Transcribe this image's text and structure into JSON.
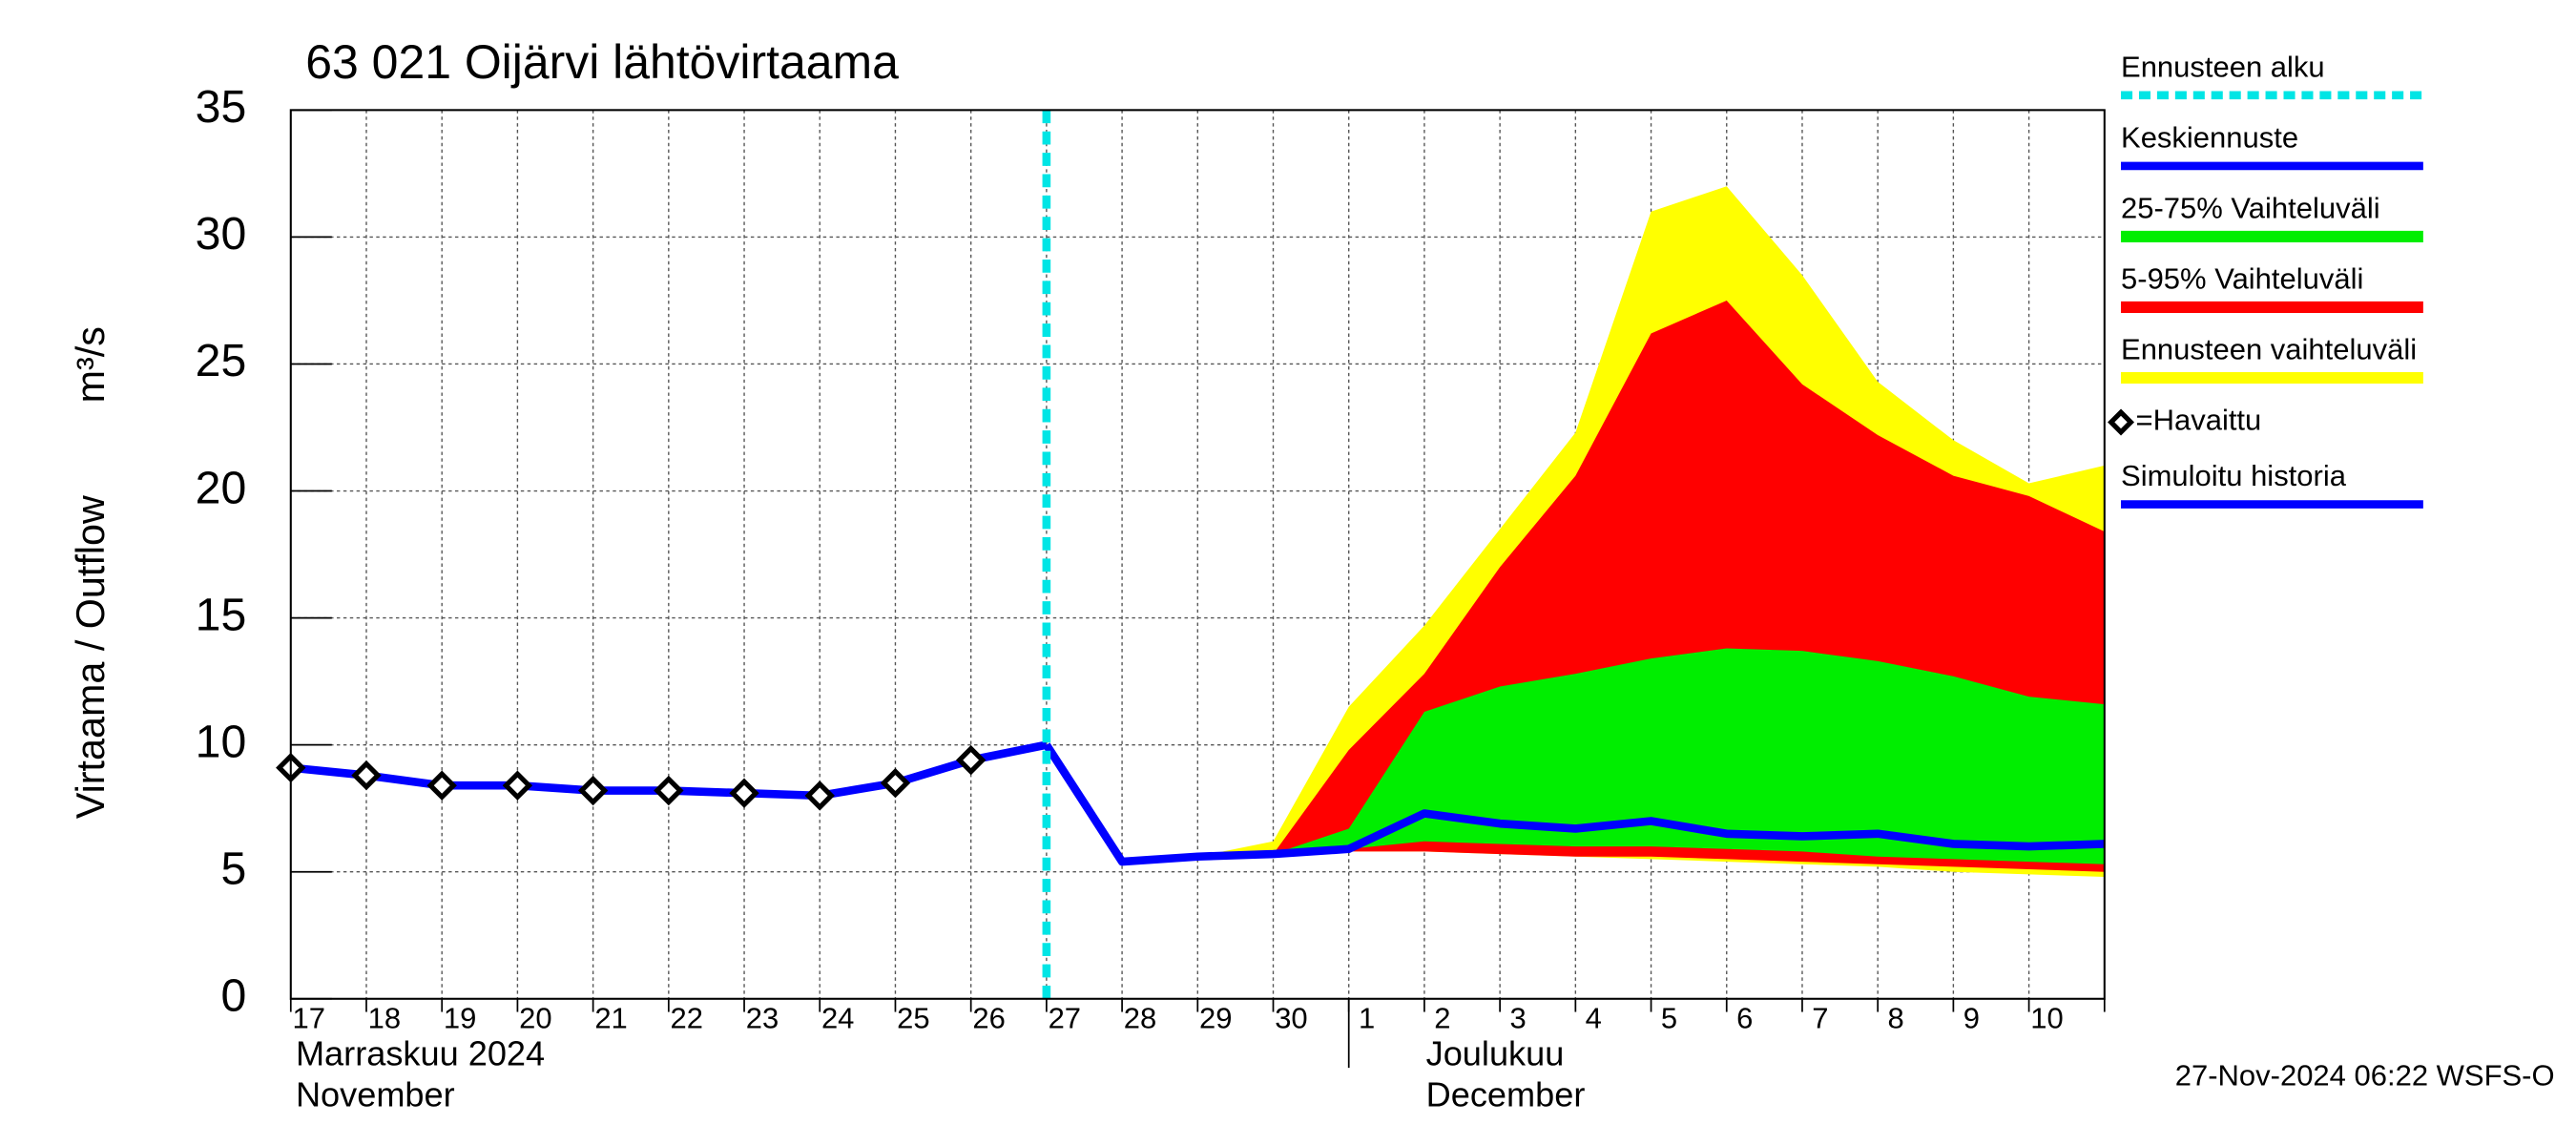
{
  "chart_data": {
    "type": "band-line",
    "title": "63 021 Oijärvi lähtövirtaama",
    "y_label": "Virtaama / Outflow",
    "y_unit": "m³/s",
    "month_labels": [
      "Marraskuu 2024",
      "November",
      "Joulukuu",
      "December"
    ],
    "footer": "27-Nov-2024 06:22 WSFS-O",
    "categories": [
      "17",
      "18",
      "19",
      "20",
      "21",
      "22",
      "23",
      "24",
      "25",
      "26",
      "27",
      "28",
      "29",
      "30",
      "1",
      "2",
      "3",
      "4",
      "5",
      "6",
      "7",
      "8",
      "9",
      "10",
      null
    ],
    "ylim": [
      0,
      35
    ],
    "yticks": [
      0,
      5,
      10,
      15,
      20,
      25,
      30,
      35
    ],
    "grid": true,
    "forecast_start": {
      "name": "Ennusteen alku",
      "color": "#00e5e5",
      "index": 10
    },
    "series": [
      {
        "name": "Keskiennuste",
        "color": "#0000ff",
        "kind": "line",
        "values": [
          null,
          null,
          null,
          null,
          null,
          null,
          null,
          null,
          null,
          null,
          10.0,
          5.4,
          5.6,
          5.7,
          5.9,
          7.3,
          6.9,
          6.7,
          7.0,
          6.5,
          6.4,
          6.5,
          6.1,
          6.0,
          6.1
        ]
      },
      {
        "name": "25-75% Vaihteluväli",
        "color": "#00ee00",
        "kind": "band",
        "low": [
          null,
          null,
          null,
          null,
          null,
          null,
          null,
          null,
          null,
          null,
          null,
          null,
          null,
          5.7,
          5.9,
          6.2,
          6.1,
          6.0,
          6.0,
          5.9,
          5.8,
          5.6,
          5.5,
          5.4,
          5.3
        ],
        "high": [
          null,
          null,
          null,
          null,
          null,
          null,
          null,
          null,
          null,
          null,
          null,
          null,
          null,
          5.7,
          6.7,
          11.3,
          12.3,
          12.8,
          13.4,
          13.8,
          13.7,
          13.3,
          12.7,
          11.9,
          11.6
        ]
      },
      {
        "name": "5-95% Vaihteluväli",
        "color": "#ff0000",
        "kind": "band",
        "low": [
          null,
          null,
          null,
          null,
          null,
          null,
          null,
          null,
          null,
          null,
          null,
          null,
          null,
          5.7,
          5.8,
          5.8,
          5.7,
          5.6,
          5.6,
          5.5,
          5.4,
          5.3,
          5.2,
          5.1,
          5.0
        ],
        "high": [
          null,
          null,
          null,
          null,
          null,
          null,
          null,
          null,
          null,
          null,
          null,
          null,
          null,
          5.7,
          9.8,
          12.8,
          17.0,
          20.6,
          26.2,
          27.5,
          24.2,
          22.2,
          20.6,
          19.8,
          18.4
        ]
      },
      {
        "name": "Ennusteen vaihteluväli",
        "color": "#ffff00",
        "kind": "band",
        "low": [
          null,
          null,
          null,
          null,
          null,
          null,
          null,
          null,
          null,
          null,
          null,
          null,
          5.6,
          5.7,
          5.8,
          5.8,
          5.7,
          5.6,
          5.5,
          5.4,
          5.3,
          5.2,
          5.0,
          4.9,
          4.8
        ],
        "high": [
          null,
          null,
          null,
          null,
          null,
          null,
          null,
          null,
          null,
          null,
          null,
          null,
          5.6,
          6.2,
          11.5,
          14.7,
          18.5,
          22.3,
          31.0,
          32.0,
          28.5,
          24.3,
          22.0,
          20.3,
          21.0
        ]
      },
      {
        "name": "=Havaittu",
        "color": "#000000",
        "kind": "marker",
        "values": [
          9.1,
          8.8,
          8.4,
          8.4,
          8.2,
          8.2,
          8.1,
          8.0,
          8.5,
          9.4,
          null,
          null,
          null,
          null,
          null,
          null,
          null,
          null,
          null,
          null,
          null,
          null,
          null,
          null,
          null
        ]
      },
      {
        "name": "Simuloitu historia",
        "color": "#0000ff",
        "kind": "line",
        "values": [
          9.1,
          8.8,
          8.4,
          8.4,
          8.2,
          8.2,
          8.1,
          8.0,
          8.5,
          9.4,
          10.0,
          null,
          null,
          null,
          null,
          null,
          null,
          null,
          null,
          null,
          null,
          null,
          null,
          null,
          null
        ]
      }
    ]
  }
}
